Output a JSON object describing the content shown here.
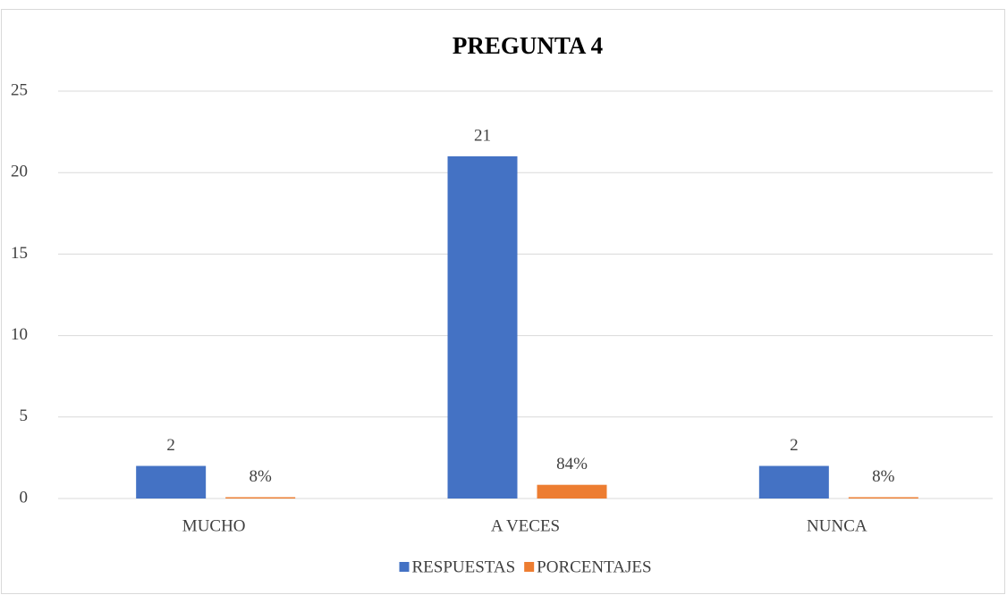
{
  "chart_data": {
    "type": "bar",
    "title": "PREGUNTA 4",
    "categories": [
      "MUCHO",
      "A VECES",
      "NUNCA"
    ],
    "series": [
      {
        "name": "RESPUESTAS",
        "color": "#4472c4",
        "values": [
          2,
          21,
          2
        ]
      },
      {
        "name": "PORCENTAJES",
        "color": "#ed7d31",
        "values": [
          0.08,
          0.84,
          0.08
        ],
        "value_labels": [
          "8%",
          "84%",
          "8%"
        ]
      }
    ],
    "ylim": [
      0,
      25
    ],
    "yticks": [
      0,
      5,
      10,
      15,
      20,
      25
    ],
    "grid": true,
    "legend": "bottom"
  }
}
